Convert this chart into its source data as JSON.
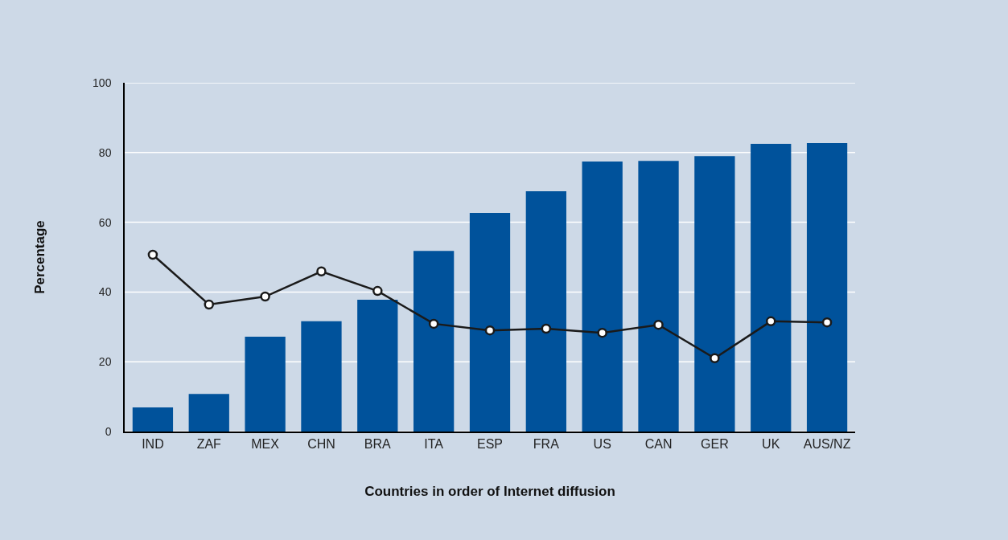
{
  "chart_data": {
    "type": "bar",
    "xlabel": "Countries in order of Internet diffusion",
    "ylabel": "Percentage",
    "categories": [
      "IND",
      "ZAF",
      "MEX",
      "CHN",
      "BRA",
      "ITA",
      "ESP",
      "FRA",
      "US",
      "CAN",
      "GER",
      "UK",
      "AUS/NZ"
    ],
    "series": [
      {
        "color": "#00529b",
        "values": [
          6.9,
          10.8,
          27.2,
          31.6,
          37.8,
          51.8,
          62.7,
          68.9,
          77.4,
          77.6,
          79.0,
          82.5,
          82.7
        ]
      },
      {
        "type": "line",
        "color": "#1a1a1a",
        "marker": "circle",
        "line_style": "solid",
        "values": [
          50.7,
          36.4,
          38.7,
          45.9,
          40.3,
          30.9,
          29.0,
          29.5,
          28.3,
          30.6,
          21.0,
          31.6,
          31.3
        ]
      }
    ],
    "ylim": [
      0,
      100
    ],
    "yticks": [
      0,
      20,
      40,
      60,
      80,
      100
    ],
    "grid": "y"
  }
}
